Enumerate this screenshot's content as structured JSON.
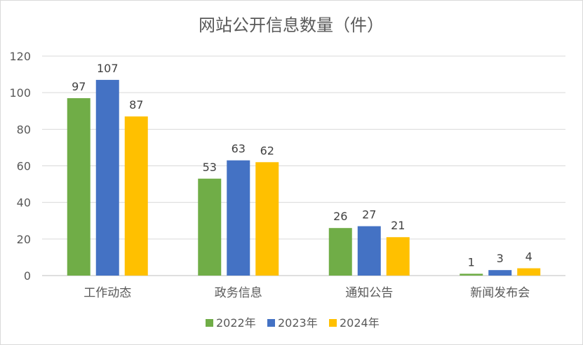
{
  "chart_data": {
    "type": "bar",
    "title": "网站公开信息数量（件）",
    "xlabel": "",
    "ylabel": "",
    "categories": [
      "工作动态",
      "政务信息",
      "通知公告",
      "新闻发布会"
    ],
    "series": [
      {
        "name": "2022年",
        "values": [
          97,
          53,
          26,
          1
        ],
        "color": "#70ad47"
      },
      {
        "name": "2023年",
        "values": [
          107,
          63,
          27,
          3
        ],
        "color": "#4472c4"
      },
      {
        "name": "2024年",
        "values": [
          87,
          62,
          21,
          4
        ],
        "color": "#ffc000"
      }
    ],
    "ylim": [
      0,
      120
    ],
    "yticks": [
      0,
      20,
      40,
      60,
      80,
      100,
      120
    ],
    "grid": true,
    "legend_position": "bottom",
    "data_labels": true
  }
}
